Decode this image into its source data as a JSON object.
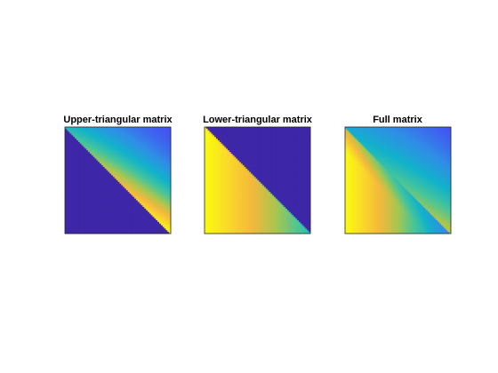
{
  "chart_data": [
    {
      "type": "heatmap",
      "title": "Upper-triangular matrix",
      "matrix": "upper-triangular",
      "size": 64,
      "colormap": "parula",
      "axes_visible": false
    },
    {
      "type": "heatmap",
      "title": "Lower-triangular matrix",
      "matrix": "lower-triangular",
      "size": 64,
      "colormap": "parula",
      "axes_visible": false
    },
    {
      "type": "heatmap",
      "title": "Full matrix",
      "matrix": "full",
      "size": 64,
      "colormap": "parula",
      "axes_visible": false
    }
  ],
  "colors": {
    "parula": [
      "#3e26a8",
      "#4255f2",
      "#2f8ee6",
      "#11b2ca",
      "#46c59a",
      "#a8c64f",
      "#f3b83c",
      "#f9d82a",
      "#f9fb0e"
    ]
  }
}
